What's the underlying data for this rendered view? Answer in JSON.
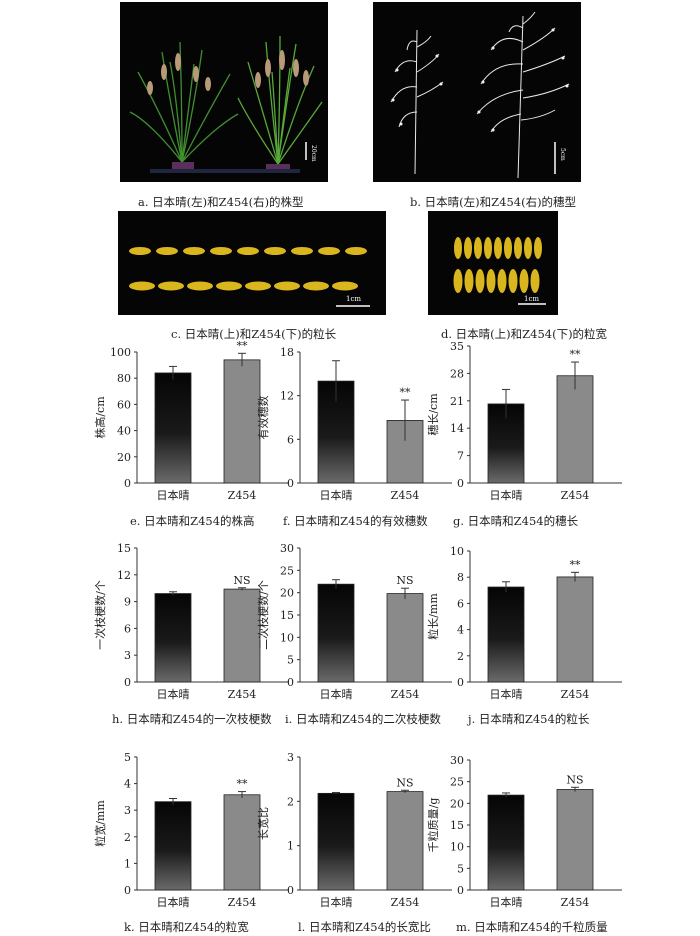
{
  "figures": {
    "a": {
      "caption": "a.  日本晴(左)和Z454(右)的株型",
      "scale": "20cm"
    },
    "b": {
      "caption": "b.  日本晴(左)和Z454(右)的穗型",
      "scale": "5cm"
    },
    "c": {
      "caption": "c.  日本晴(上)和Z454(下)的粒长",
      "scale": "1cm"
    },
    "d": {
      "caption": "d.  日本晴(上)和Z454(下)的粒宽",
      "scale": "1cm"
    }
  },
  "chart_data": [
    {
      "id": "e",
      "type": "bar",
      "caption": "e.  日本晴和Z454的株高",
      "ylabel": "株高/cm",
      "categories": [
        "日本晴",
        "Z454"
      ],
      "values": [
        84,
        94
      ],
      "errors": [
        5,
        5
      ],
      "ylim": [
        0,
        100
      ],
      "yticks": [
        0,
        20,
        40,
        60,
        80,
        100
      ],
      "marks": [
        "",
        "**"
      ]
    },
    {
      "id": "f",
      "type": "bar",
      "caption": "f.  日本晴和Z454的有效穗数",
      "ylabel": "有效穗数",
      "categories": [
        "日本晴",
        "Z454"
      ],
      "values": [
        14,
        8.6
      ],
      "errors": [
        2.8,
        2.8
      ],
      "ylim": [
        0,
        18
      ],
      "yticks": [
        0,
        6,
        12,
        18
      ],
      "marks": [
        "",
        "**"
      ]
    },
    {
      "id": "g",
      "type": "bar",
      "caption": "g.  日本晴和Z454的穗长",
      "ylabel": "穗长/cm",
      "categories": [
        "日本晴",
        "Z454"
      ],
      "values": [
        20.2,
        27.4
      ],
      "errors": [
        3.7,
        3.5
      ],
      "ylim": [
        0,
        35
      ],
      "yticks": [
        0,
        7,
        14,
        21,
        28,
        35
      ],
      "marks": [
        "",
        "**"
      ]
    },
    {
      "id": "h",
      "type": "bar",
      "caption": "h.  日本晴和Z454的一次枝梗数",
      "ylabel": "一次枝梗数/个",
      "categories": [
        "日本晴",
        "Z454"
      ],
      "values": [
        9.9,
        10.4
      ],
      "errors": [
        0.2,
        0.15
      ],
      "ylim": [
        0,
        15
      ],
      "yticks": [
        0,
        3,
        6,
        9,
        12,
        15
      ],
      "marks": [
        "",
        "NS"
      ]
    },
    {
      "id": "i",
      "type": "bar",
      "caption": "i.  日本晴和Z454的二次枝梗数",
      "ylabel": "二次枝梗数/个",
      "categories": [
        "日本晴",
        "Z454"
      ],
      "values": [
        21.9,
        19.8
      ],
      "errors": [
        1.0,
        1.2
      ],
      "ylim": [
        0,
        30
      ],
      "yticks": [
        0,
        5,
        10,
        15,
        20,
        25,
        30
      ],
      "marks": [
        "",
        "NS"
      ]
    },
    {
      "id": "j",
      "type": "bar",
      "caption": "j.  日本晴和Z454的粒长",
      "ylabel": "粒长/mm",
      "categories": [
        "日本晴",
        "Z454"
      ],
      "values": [
        7.25,
        8.02
      ],
      "errors": [
        0.4,
        0.35
      ],
      "ylim": [
        0,
        10
      ],
      "yticks": [
        0,
        2,
        4,
        6,
        8,
        10
      ],
      "marks": [
        "",
        "**"
      ]
    },
    {
      "id": "k",
      "type": "bar",
      "caption": "k.  日本晴和Z454的粒宽",
      "ylabel": "粒宽/mm",
      "categories": [
        "日本晴",
        "Z454"
      ],
      "values": [
        3.32,
        3.58
      ],
      "errors": [
        0.12,
        0.12
      ],
      "ylim": [
        0,
        5
      ],
      "yticks": [
        0,
        1,
        2,
        3,
        4,
        5
      ],
      "marks": [
        "",
        "**"
      ]
    },
    {
      "id": "l",
      "type": "bar",
      "caption": "l.  日本晴和Z454的长宽比",
      "ylabel": "长宽比",
      "categories": [
        "日本晴",
        "Z454"
      ],
      "values": [
        2.18,
        2.22
      ],
      "errors": [
        0.02,
        0.03
      ],
      "ylim": [
        0,
        3
      ],
      "yticks": [
        0,
        1,
        2,
        3
      ],
      "marks": [
        "",
        "NS"
      ]
    },
    {
      "id": "m",
      "type": "bar",
      "caption": "m.  日本晴和Z454的千粒质量",
      "ylabel": "千粒质量/g",
      "categories": [
        "日本晴",
        "Z454"
      ],
      "values": [
        21.9,
        23.2
      ],
      "errors": [
        0.5,
        0.5
      ],
      "ylim": [
        0,
        30
      ],
      "yticks": [
        0,
        5,
        10,
        15,
        20,
        25,
        30
      ],
      "marks": [
        "",
        "NS"
      ]
    }
  ]
}
